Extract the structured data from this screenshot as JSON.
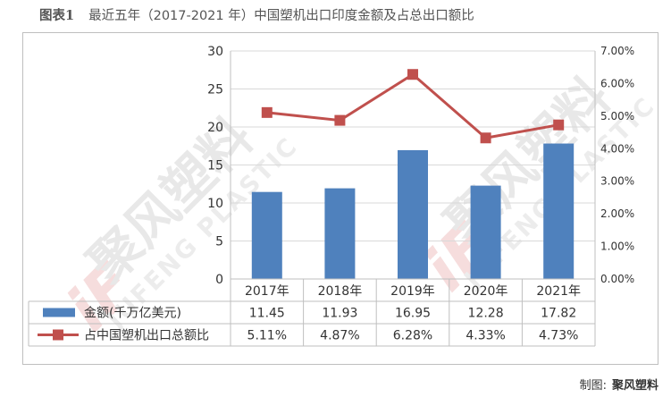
{
  "header": {
    "label": "图表1",
    "title": "最近五年（2017-2021 年）中国塑机出口印度金额及占总出口额比"
  },
  "watermark": {
    "logo_text": "iF",
    "brand_cn": "聚风塑料",
    "brand_en": "JUFENG PLASTIC"
  },
  "credit": {
    "prefix": "制图:",
    "name": "聚风塑料"
  },
  "chart_data": {
    "type": "bar+line",
    "categories": [
      "2017年",
      "2018年",
      "2019年",
      "2020年",
      "2021年"
    ],
    "series": [
      {
        "name": "金额(千万亿美元)",
        "type": "bar",
        "axis": "left",
        "color": "#4f81bd",
        "values": [
          11.45,
          11.93,
          16.95,
          12.28,
          17.82
        ],
        "labels": [
          "11.45",
          "11.93",
          "16.95",
          "12.28",
          "17.82"
        ]
      },
      {
        "name": "占中国塑机出口总额比",
        "type": "line",
        "axis": "right",
        "color": "#c0504d",
        "values": [
          5.11,
          4.87,
          6.28,
          4.33,
          4.73
        ],
        "labels": [
          "5.11%",
          "4.87%",
          "6.28%",
          "4.33%",
          "4.73%"
        ]
      }
    ],
    "y_left": {
      "min": 0,
      "max": 30,
      "step": 5,
      "ticks": [
        "0",
        "5",
        "10",
        "15",
        "20",
        "25",
        "30"
      ]
    },
    "y_right": {
      "min": 0,
      "max": 7,
      "step": 1,
      "ticks": [
        "0.00%",
        "1.00%",
        "2.00%",
        "3.00%",
        "4.00%",
        "5.00%",
        "6.00%",
        "7.00%"
      ]
    },
    "grid": true,
    "legend": "data-table"
  }
}
